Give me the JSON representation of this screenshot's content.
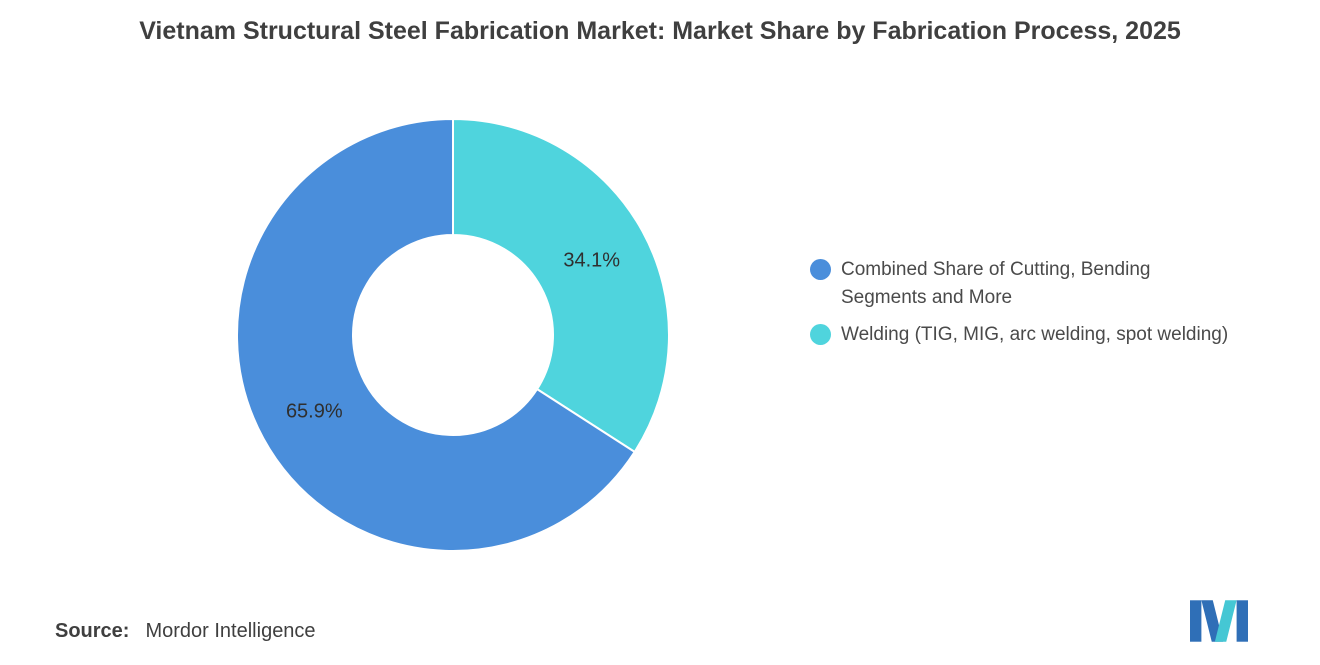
{
  "title": "Vietnam Structural Steel Fabrication Market: Market Share by Fabrication Process, 2025",
  "source": {
    "label": "Source:",
    "value": "Mordor Intelligence"
  },
  "logo": {
    "name": "mordor-intelligence-logo",
    "primary_color": "#2f6fb7",
    "accent_color": "#45c7d4"
  },
  "chart_data": {
    "type": "pie",
    "donut": true,
    "title": "Vietnam Structural Steel Fabrication Market: Market Share by Fabrication Process, 2025",
    "legend_position": "right",
    "start_angle": "top",
    "direction": "first legend slice drawn counter-clockwise from top; second slice fills right side",
    "slices": [
      {
        "label": "Combined Share of Cutting, Bending Segments and More",
        "value": 65.9,
        "data_label": "65.9%",
        "color": "#4a8edb"
      },
      {
        "label": "Welding (TIG, MIG, arc welding, spot welding)",
        "value": 34.1,
        "data_label": "34.1%",
        "color": "#4fd4dd"
      }
    ]
  }
}
